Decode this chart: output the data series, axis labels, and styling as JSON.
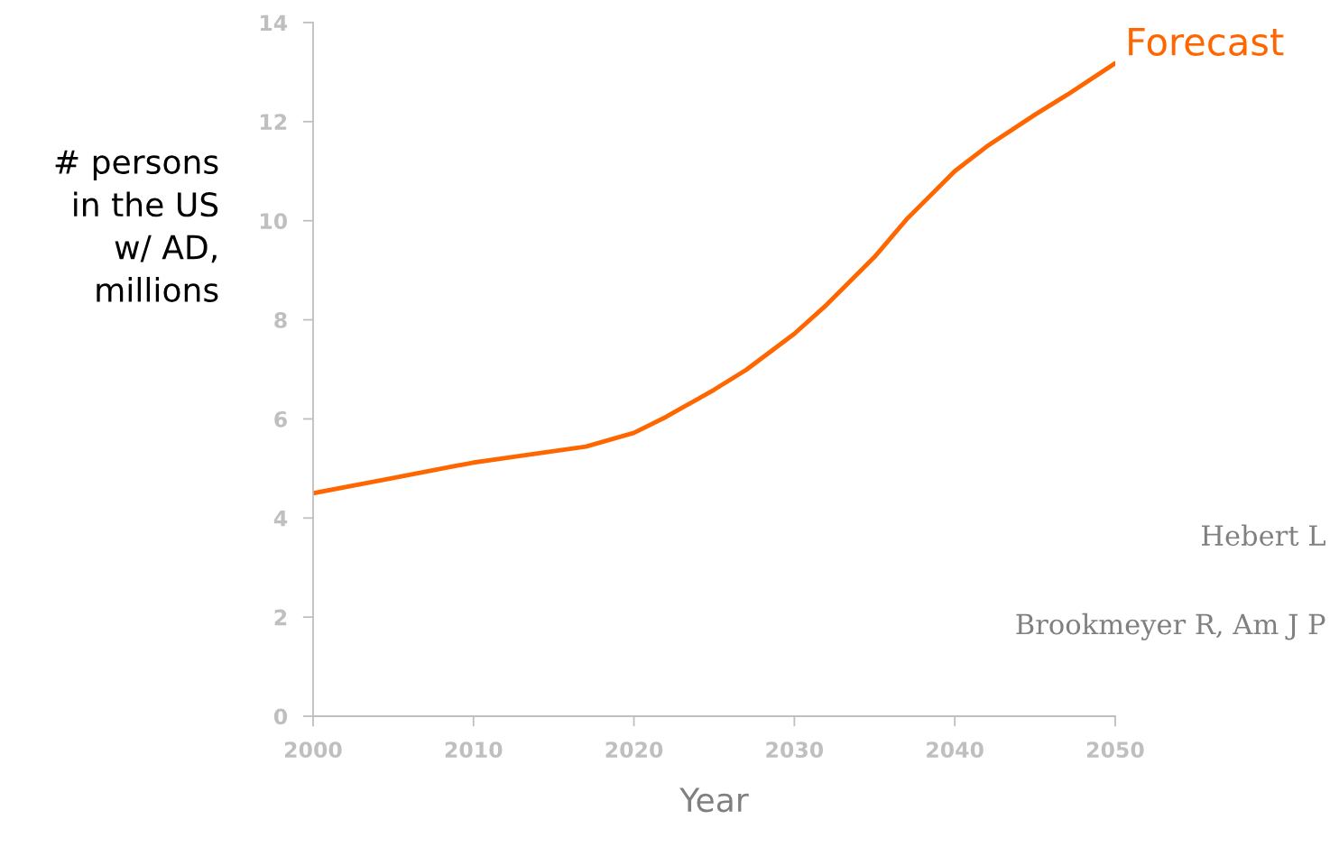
{
  "chart_data": {
    "type": "line",
    "xlabel": "Year",
    "ylabel": "# persons\nin the US\nw/ AD,\nmillions",
    "xlim": [
      2000,
      2050
    ],
    "xticks": [
      2000,
      2010,
      2020,
      2030,
      2040,
      2050
    ],
    "ylim": [
      0,
      14
    ],
    "yticks": [
      0,
      2,
      4,
      6,
      8,
      10,
      12,
      14
    ],
    "grid": false,
    "legend": false,
    "marker": "none",
    "line_style": "solid",
    "series": [
      {
        "name": "Forecast",
        "color": "#ff6600",
        "x": [
          2000,
          2005,
          2010,
          2015,
          2017,
          2020,
          2022,
          2025,
          2027,
          2030,
          2032,
          2035,
          2037,
          2040,
          2042,
          2045,
          2047,
          2050
        ],
        "values": [
          4.5,
          4.81,
          5.12,
          5.35,
          5.44,
          5.72,
          6.04,
          6.59,
          6.99,
          7.72,
          8.3,
          9.27,
          10.03,
          11.0,
          11.5,
          12.14,
          12.54,
          13.18
        ]
      }
    ],
    "annotations": [
      "Hebert L",
      "Brookmeyer R, Am J P"
    ]
  }
}
